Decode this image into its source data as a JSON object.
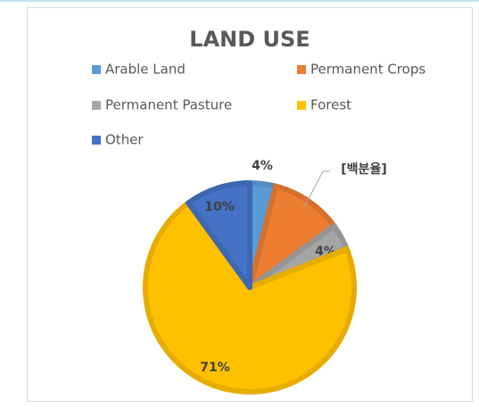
{
  "chart_data": {
    "type": "pie",
    "title": "LAND USE",
    "categories": [
      "Arable Land",
      "Permanent Crops",
      "Permanent Pasture",
      "Forest",
      "Other"
    ],
    "values": [
      4,
      11,
      4,
      71,
      10
    ],
    "value_labels": [
      "4%",
      "[백분율]",
      "4%",
      "71%",
      "10%"
    ],
    "colors": [
      "#5b9bd5",
      "#ed7d31",
      "#a5a5a5",
      "#ffc000",
      "#4472c4"
    ],
    "legend": "top"
  }
}
